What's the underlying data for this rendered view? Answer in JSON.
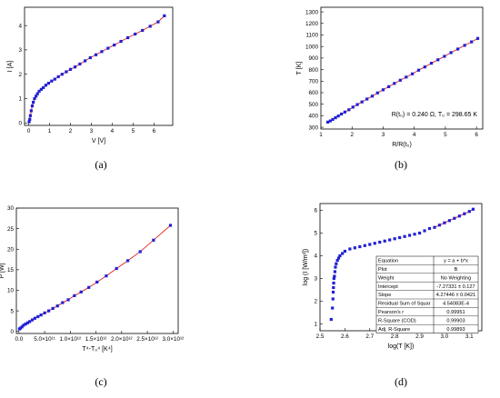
{
  "colors": {
    "marker": "#1f1fd6",
    "fit": "#e02020",
    "axis": "#000000"
  },
  "chart_data": [
    {
      "caption": "(a)",
      "type": "scatter",
      "xlabel": "V [V]",
      "ylabel": "I [A]",
      "xlim": [
        -0.2,
        6.9
      ],
      "ylim": [
        -0.1,
        4.75
      ],
      "xticks": [
        "0",
        "1",
        "2",
        "3",
        "4",
        "5",
        "6"
      ],
      "yticks": [
        "0",
        "1",
        "2",
        "3",
        "4"
      ],
      "fit_line": true,
      "x": [
        0.02,
        0.05,
        0.08,
        0.12,
        0.17,
        0.22,
        0.28,
        0.35,
        0.42,
        0.5,
        0.6,
        0.7,
        0.82,
        0.95,
        1.1,
        1.25,
        1.42,
        1.6,
        1.8,
        2.0,
        2.22,
        2.45,
        2.7,
        2.95,
        3.22,
        3.5,
        3.8,
        4.1,
        4.42,
        4.75,
        5.1,
        5.45,
        5.82,
        6.2,
        6.5
      ],
      "y": [
        0.05,
        0.15,
        0.3,
        0.5,
        0.7,
        0.85,
        1.0,
        1.1,
        1.2,
        1.3,
        1.38,
        1.45,
        1.55,
        1.63,
        1.72,
        1.8,
        1.9,
        2.0,
        2.1,
        2.2,
        2.3,
        2.42,
        2.55,
        2.68,
        2.8,
        2.93,
        3.07,
        3.2,
        3.35,
        3.5,
        3.65,
        3.8,
        3.97,
        4.15,
        4.4
      ]
    },
    {
      "caption": "(b)",
      "type": "scatter",
      "xlabel": "R/R(t₀)",
      "ylabel": "T [K]",
      "xlim": [
        1.0,
        6.2
      ],
      "ylim": [
        285,
        1340
      ],
      "xticks": [
        "1",
        "2",
        "3",
        "4",
        "5",
        "6"
      ],
      "yticks": [
        "300",
        "400",
        "500",
        "600",
        "700",
        "800",
        "900",
        "1000",
        "1100",
        "1200",
        "1300"
      ],
      "fit_line": true,
      "annotation": "R(t₀) = 0.240 Ω, T₀ = 298.65 K",
      "x": [
        1.22,
        1.3,
        1.38,
        1.47,
        1.56,
        1.66,
        1.77,
        1.9,
        2.03,
        2.17,
        2.32,
        2.48,
        2.65,
        2.82,
        3.0,
        3.18,
        3.36,
        3.55,
        3.74,
        3.94,
        4.14,
        4.34,
        4.55,
        4.76,
        4.97,
        5.18,
        5.4,
        5.62,
        5.84,
        6.04
      ],
      "y": [
        345,
        355,
        368,
        383,
        398,
        415,
        432,
        452,
        475,
        497,
        520,
        545,
        570,
        598,
        625,
        652,
        680,
        708,
        735,
        763,
        795,
        823,
        855,
        885,
        915,
        947,
        978,
        1010,
        1040,
        1070
      ]
    },
    {
      "caption": "(c)",
      "type": "scatter",
      "xlabel": "T⁴-T₀⁴ [K⁴]",
      "ylabel": "P [W]",
      "xlim": [
        -0.05,
        3.1
      ],
      "ylim": [
        -0.5,
        30
      ],
      "x_tick_scale": "×10¹²",
      "xticks": [
        "0.0",
        "5.0×10¹¹",
        "1.0×10¹²",
        "1.5×10¹²",
        "2.0×10¹²",
        "2.5×10¹²",
        "3.0×10¹²"
      ],
      "yticks": [
        "0",
        "5",
        "10",
        "15",
        "20",
        "25",
        "30"
      ],
      "fit_line": true,
      "x": [
        0.01,
        0.03,
        0.06,
        0.09,
        0.13,
        0.17,
        0.21,
        0.26,
        0.31,
        0.37,
        0.43,
        0.5,
        0.58,
        0.66,
        0.75,
        0.85,
        0.96,
        1.08,
        1.21,
        1.36,
        1.52,
        1.7,
        1.9,
        2.12,
        2.36,
        2.62,
        2.95
      ],
      "y": [
        0.6,
        0.8,
        1.1,
        1.5,
        1.8,
        2.1,
        2.4,
        2.8,
        3.2,
        3.6,
        4.0,
        4.5,
        5.0,
        5.6,
        6.2,
        7.0,
        7.7,
        8.7,
        9.6,
        10.7,
        12.0,
        13.5,
        15.3,
        17.2,
        19.4,
        22.2,
        25.8
      ]
    },
    {
      "caption": "(d)",
      "type": "scatter",
      "xlabel": "log(T [K])",
      "ylabel": "log (I [W/m²])",
      "xlim": [
        2.5,
        3.15
      ],
      "ylim": [
        0.7,
        6.3
      ],
      "xticks": [
        "2.5",
        "2.6",
        "2.7",
        "2.8",
        "2.9",
        "3.0",
        "3.1"
      ],
      "yticks": [
        "1",
        "2",
        "3",
        "4",
        "5",
        "6"
      ],
      "fit_line": true,
      "fit_x_range": [
        2.95,
        3.12
      ],
      "x": [
        2.545,
        2.55,
        2.552,
        2.553,
        2.554,
        2.555,
        2.556,
        2.558,
        2.56,
        2.562,
        2.565,
        2.57,
        2.575,
        2.58,
        2.59,
        2.6,
        2.62,
        2.64,
        2.66,
        2.68,
        2.7,
        2.72,
        2.74,
        2.76,
        2.78,
        2.8,
        2.82,
        2.84,
        2.86,
        2.88,
        2.9,
        2.92,
        2.94,
        2.96,
        2.98,
        3.0,
        3.02,
        3.04,
        3.06,
        3.08,
        3.1,
        3.115
      ],
      "y": [
        1.2,
        1.7,
        2.1,
        2.4,
        2.6,
        2.8,
        3.0,
        3.1,
        3.3,
        3.5,
        3.65,
        3.8,
        3.9,
        4.0,
        4.1,
        4.2,
        4.3,
        4.35,
        4.4,
        4.45,
        4.5,
        4.55,
        4.6,
        4.65,
        4.7,
        4.75,
        4.8,
        4.85,
        4.9,
        4.95,
        5.0,
        5.1,
        5.2,
        5.25,
        5.35,
        5.45,
        5.55,
        5.65,
        5.75,
        5.85,
        5.95,
        6.05
      ],
      "table": {
        "rows": [
          [
            "Equation",
            "y = a + b*x"
          ],
          [
            "Plot",
            "B"
          ],
          [
            "Weight",
            "No Weighting"
          ],
          [
            "Intercept",
            "-7.27331 ± 0.127"
          ],
          [
            "Slope",
            "4.27446 ± 0.0421"
          ],
          [
            "Residual Sum of Squar",
            "4.54083E-4"
          ],
          [
            "Pearson's r",
            "0.99951"
          ],
          [
            "R-Square (COD)",
            "0.99903"
          ],
          [
            "Adj. R-Square",
            "0.99893"
          ]
        ]
      }
    }
  ]
}
